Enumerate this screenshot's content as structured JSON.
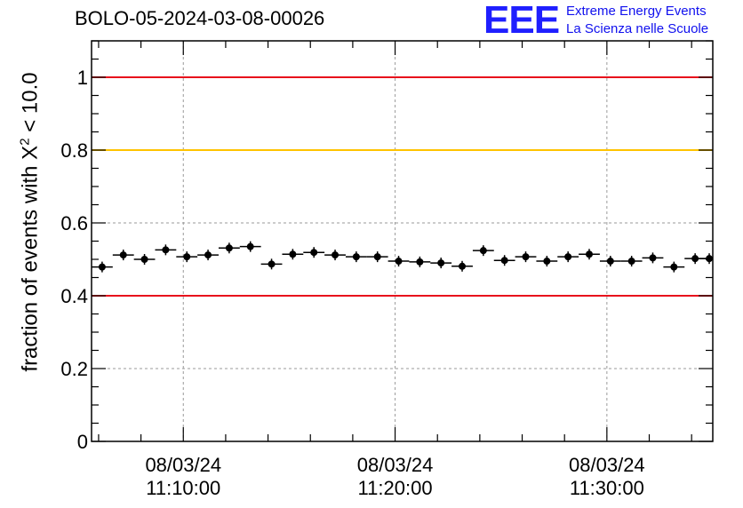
{
  "title": "BOLO-05-2024-03-08-00026",
  "logo": {
    "mark": "EEE",
    "line1": "Extreme Energy Events",
    "line2": "La Scienza nelle Scuole"
  },
  "chart_data": {
    "type": "scatter",
    "ylabel_main": "fraction of events with X",
    "ylabel_sup": "2",
    "ylabel_tail": " < 10.0",
    "ylim": [
      0,
      1.1
    ],
    "y_ticks": [
      0,
      0.2,
      0.4,
      0.6,
      0.8,
      1
    ],
    "y_tick_labels": [
      "0",
      "0.2",
      "0.4",
      "0.6",
      "0.8",
      "1"
    ],
    "x_range": [
      "11:05:40",
      "11:35:00"
    ],
    "x_ticks": [
      {
        "date": "08/03/24",
        "time": "11:10:00"
      },
      {
        "date": "08/03/24",
        "time": "11:20:00"
      },
      {
        "date": "08/03/24",
        "time": "11:30:00"
      }
    ],
    "grid": true,
    "reference_lines": [
      {
        "y": 1.0,
        "color": "#e8101c"
      },
      {
        "y": 0.8,
        "color": "#ffc300"
      },
      {
        "y": 0.4,
        "color": "#e8101c"
      }
    ],
    "bin_width_minutes": 1,
    "series": [
      {
        "marker_color": "#000000",
        "x": [
          "11:06:10",
          "11:07:10",
          "11:08:10",
          "11:09:10",
          "11:10:10",
          "11:11:10",
          "11:12:10",
          "11:13:10",
          "11:14:10",
          "11:15:10",
          "11:16:10",
          "11:17:10",
          "11:18:10",
          "11:19:10",
          "11:20:10",
          "11:21:10",
          "11:22:10",
          "11:23:10",
          "11:24:10",
          "11:25:10",
          "11:26:10",
          "11:27:10",
          "11:28:10",
          "11:29:10",
          "11:30:10",
          "11:31:10",
          "11:32:10",
          "11:33:10",
          "11:34:10",
          "11:34:50"
        ],
        "y": [
          0.479,
          0.512,
          0.5,
          0.526,
          0.507,
          0.512,
          0.531,
          0.535,
          0.487,
          0.514,
          0.519,
          0.512,
          0.507,
          0.507,
          0.495,
          0.493,
          0.49,
          0.481,
          0.524,
          0.497,
          0.507,
          0.495,
          0.507,
          0.514,
          0.495,
          0.495,
          0.504,
          0.479,
          0.502,
          0.502
        ]
      }
    ]
  }
}
